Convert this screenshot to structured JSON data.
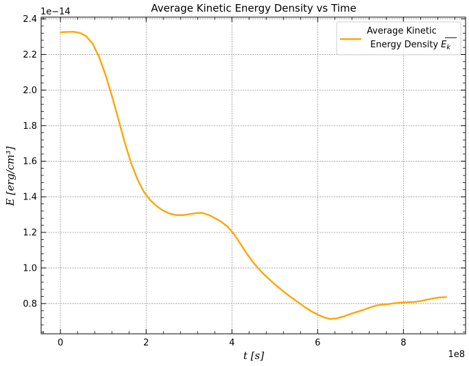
{
  "chart_data": {
    "type": "line",
    "title": "Average Kinetic Energy Density vs Time",
    "xlabel": "t [s]",
    "ylabel": "E [erg/cm³]",
    "x_offset_label": "1e8",
    "y_offset_label": "1e−14",
    "xlim": [
      -0.45,
      9.45
    ],
    "ylim": [
      0.63,
      2.41
    ],
    "xticks": [
      0,
      2,
      4,
      6,
      8
    ],
    "yticks": [
      0.8,
      1.0,
      1.2,
      1.4,
      1.6,
      1.8,
      2.0,
      2.2,
      2.4
    ],
    "xtick_labels": [
      "0",
      "2",
      "4",
      "6",
      "8"
    ],
    "ytick_labels": [
      "0.8",
      "1.0",
      "1.2",
      "1.4",
      "1.6",
      "1.8",
      "2.0",
      "2.2",
      "2.4"
    ],
    "grid": true,
    "legend_position": "top-right",
    "series": [
      {
        "name": "Average Kinetic Energy Density E̅k",
        "legend_line1": "Average Kinetic",
        "legend_line2": "Energy Density",
        "legend_symbol": "E",
        "legend_subscript": "k",
        "color": "#FFA500",
        "x": [
          0,
          0.15,
          0.3,
          0.45,
          0.6,
          0.75,
          0.9,
          1.05,
          1.2,
          1.35,
          1.5,
          1.65,
          1.8,
          1.95,
          2.1,
          2.25,
          2.4,
          2.55,
          2.7,
          2.85,
          3.0,
          3.15,
          3.3,
          3.45,
          3.6,
          3.75,
          3.9,
          4.05,
          4.2,
          4.35,
          4.5,
          4.65,
          4.8,
          4.95,
          5.1,
          5.25,
          5.4,
          5.55,
          5.7,
          5.85,
          6.0,
          6.15,
          6.3,
          6.45,
          6.6,
          6.75,
          6.9,
          7.05,
          7.2,
          7.35,
          7.5,
          7.65,
          7.8,
          7.95,
          8.1,
          8.25,
          8.4,
          8.55,
          8.7,
          8.85,
          9.0
        ],
        "y": [
          2.325,
          2.327,
          2.328,
          2.322,
          2.303,
          2.261,
          2.187,
          2.087,
          1.968,
          1.838,
          1.705,
          1.589,
          1.496,
          1.427,
          1.38,
          1.346,
          1.322,
          1.306,
          1.297,
          1.297,
          1.302,
          1.308,
          1.31,
          1.299,
          1.281,
          1.26,
          1.232,
          1.19,
          1.135,
          1.08,
          1.03,
          0.988,
          0.952,
          0.919,
          0.888,
          0.859,
          0.832,
          0.806,
          0.78,
          0.757,
          0.738,
          0.722,
          0.713,
          0.717,
          0.727,
          0.74,
          0.752,
          0.763,
          0.776,
          0.788,
          0.794,
          0.797,
          0.802,
          0.806,
          0.808,
          0.809,
          0.814,
          0.822,
          0.829,
          0.835,
          0.836
        ]
      }
    ]
  }
}
